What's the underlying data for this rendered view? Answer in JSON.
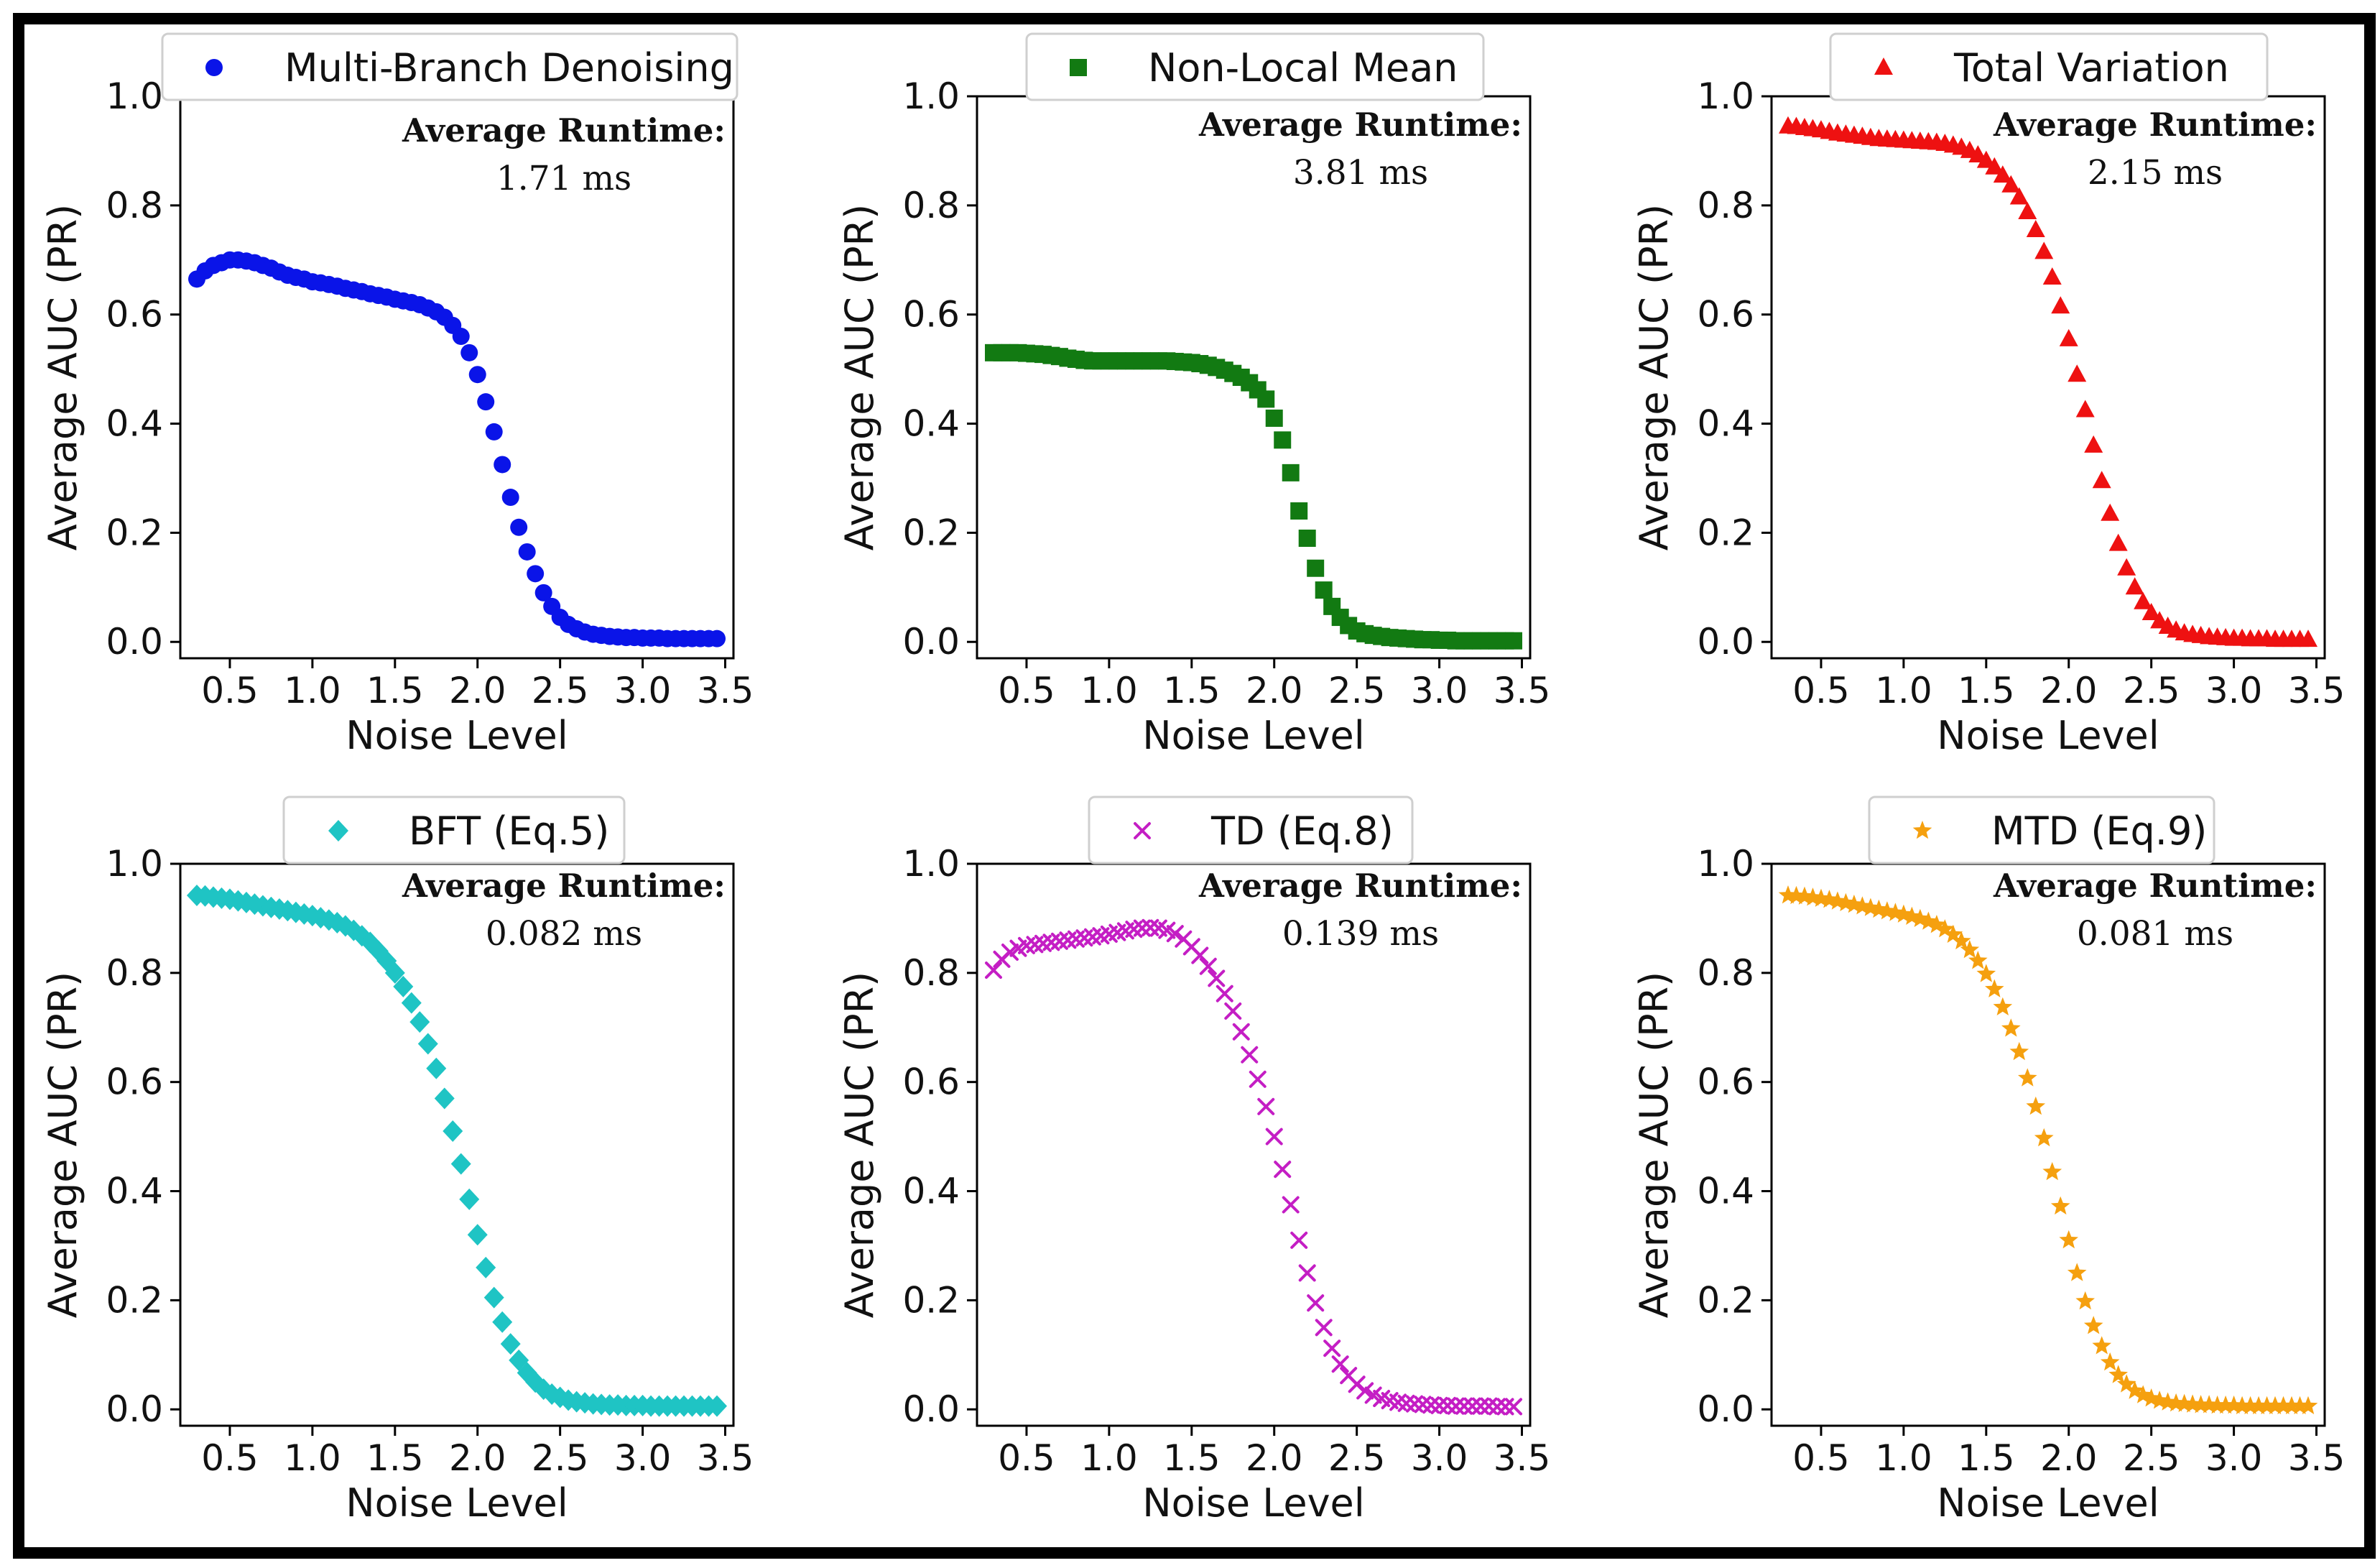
{
  "chart_data": [
    {
      "type": "scatter",
      "legend_label": "Multi-Branch Denoising",
      "marker": "circle",
      "color": "#0a14e8",
      "xlabel": "Noise Level",
      "ylabel": "Average AUC (PR)",
      "xlim": [
        0.2,
        3.55
      ],
      "ylim": [
        -0.03,
        1.0
      ],
      "xticks": [
        "0.5",
        "1.0",
        "1.5",
        "2.0",
        "2.5",
        "3.0",
        "3.5"
      ],
      "yticks": [
        "0.0",
        "0.2",
        "0.4",
        "0.6",
        "0.8",
        "1.0"
      ],
      "runtime_title": "Average Runtime:",
      "runtime_value": "1.71 ms",
      "x": [
        0.3,
        0.35,
        0.4,
        0.45,
        0.5,
        0.55,
        0.6,
        0.65,
        0.7,
        0.75,
        0.8,
        0.85,
        0.9,
        0.95,
        1.0,
        1.05,
        1.1,
        1.15,
        1.2,
        1.25,
        1.3,
        1.35,
        1.4,
        1.45,
        1.5,
        1.55,
        1.6,
        1.65,
        1.7,
        1.75,
        1.8,
        1.85,
        1.9,
        1.95,
        2.0,
        2.05,
        2.1,
        2.15,
        2.2,
        2.25,
        2.3,
        2.35,
        2.4,
        2.45,
        2.5,
        2.55,
        2.6,
        2.65,
        2.7,
        2.75,
        2.8,
        2.85,
        2.9,
        2.95,
        3.0,
        3.05,
        3.1,
        3.15,
        3.2,
        3.25,
        3.3,
        3.35,
        3.4,
        3.45
      ],
      "y": [
        0.665,
        0.68,
        0.69,
        0.695,
        0.7,
        0.7,
        0.698,
        0.695,
        0.69,
        0.685,
        0.678,
        0.672,
        0.668,
        0.665,
        0.66,
        0.658,
        0.655,
        0.652,
        0.648,
        0.645,
        0.642,
        0.638,
        0.635,
        0.632,
        0.628,
        0.625,
        0.622,
        0.618,
        0.612,
        0.605,
        0.595,
        0.58,
        0.56,
        0.53,
        0.49,
        0.44,
        0.385,
        0.325,
        0.265,
        0.21,
        0.165,
        0.125,
        0.09,
        0.065,
        0.045,
        0.032,
        0.024,
        0.018,
        0.014,
        0.012,
        0.01,
        0.009,
        0.008,
        0.008,
        0.007,
        0.007,
        0.007,
        0.006,
        0.006,
        0.006,
        0.006,
        0.006,
        0.006,
        0.006
      ]
    },
    {
      "type": "scatter",
      "legend_label": "Non-Local Mean",
      "marker": "square",
      "color": "#127a12",
      "xlabel": "Noise Level",
      "ylabel": "Average AUC (PR)",
      "xlim": [
        0.2,
        3.55
      ],
      "ylim": [
        -0.03,
        1.0
      ],
      "xticks": [
        "0.5",
        "1.0",
        "1.5",
        "2.0",
        "2.5",
        "3.0",
        "3.5"
      ],
      "yticks": [
        "0.0",
        "0.2",
        "0.4",
        "0.6",
        "0.8",
        "1.0"
      ],
      "runtime_title": "Average Runtime:",
      "runtime_value": "3.81 ms",
      "x": [
        0.3,
        0.35,
        0.4,
        0.45,
        0.5,
        0.55,
        0.6,
        0.65,
        0.7,
        0.75,
        0.8,
        0.85,
        0.9,
        0.95,
        1.0,
        1.05,
        1.1,
        1.15,
        1.2,
        1.25,
        1.3,
        1.35,
        1.4,
        1.45,
        1.5,
        1.55,
        1.6,
        1.65,
        1.7,
        1.75,
        1.8,
        1.85,
        1.9,
        1.95,
        2.0,
        2.05,
        2.1,
        2.15,
        2.2,
        2.25,
        2.3,
        2.35,
        2.4,
        2.45,
        2.5,
        2.55,
        2.6,
        2.65,
        2.7,
        2.75,
        2.8,
        2.85,
        2.9,
        2.95,
        3.0,
        3.05,
        3.1,
        3.15,
        3.2,
        3.25,
        3.3,
        3.35,
        3.4,
        3.45
      ],
      "y": [
        0.53,
        0.53,
        0.53,
        0.53,
        0.529,
        0.528,
        0.527,
        0.525,
        0.523,
        0.52,
        0.518,
        0.516,
        0.515,
        0.515,
        0.515,
        0.515,
        0.515,
        0.515,
        0.515,
        0.515,
        0.515,
        0.515,
        0.514,
        0.513,
        0.512,
        0.51,
        0.507,
        0.503,
        0.498,
        0.492,
        0.485,
        0.475,
        0.462,
        0.445,
        0.41,
        0.37,
        0.31,
        0.24,
        0.19,
        0.135,
        0.095,
        0.065,
        0.045,
        0.03,
        0.02,
        0.015,
        0.012,
        0.01,
        0.008,
        0.007,
        0.006,
        0.005,
        0.004,
        0.004,
        0.003,
        0.003,
        0.002,
        0.002,
        0.002,
        0.002,
        0.002,
        0.002,
        0.002,
        0.002
      ]
    },
    {
      "type": "scatter",
      "legend_label": "Total Variation",
      "marker": "triangle",
      "color": "#ee1111",
      "xlabel": "Noise Level",
      "ylabel": "Average AUC (PR)",
      "xlim": [
        0.2,
        3.55
      ],
      "ylim": [
        -0.03,
        1.0
      ],
      "xticks": [
        "0.5",
        "1.0",
        "1.5",
        "2.0",
        "2.5",
        "3.0",
        "3.5"
      ],
      "yticks": [
        "0.0",
        "0.2",
        "0.4",
        "0.6",
        "0.8",
        "1.0"
      ],
      "runtime_title": "Average Runtime:",
      "runtime_value": "2.15 ms",
      "x": [
        0.3,
        0.35,
        0.4,
        0.45,
        0.5,
        0.55,
        0.6,
        0.65,
        0.7,
        0.75,
        0.8,
        0.85,
        0.9,
        0.95,
        1.0,
        1.05,
        1.1,
        1.15,
        1.2,
        1.25,
        1.3,
        1.35,
        1.4,
        1.45,
        1.5,
        1.55,
        1.6,
        1.65,
        1.7,
        1.75,
        1.8,
        1.85,
        1.9,
        1.95,
        2.0,
        2.05,
        2.1,
        2.15,
        2.2,
        2.25,
        2.3,
        2.35,
        2.4,
        2.45,
        2.5,
        2.55,
        2.6,
        2.65,
        2.7,
        2.75,
        2.8,
        2.85,
        2.9,
        2.95,
        3.0,
        3.05,
        3.1,
        3.15,
        3.2,
        3.25,
        3.3,
        3.35,
        3.4,
        3.45
      ],
      "y": [
        0.945,
        0.944,
        0.942,
        0.94,
        0.938,
        0.935,
        0.932,
        0.93,
        0.928,
        0.926,
        0.924,
        0.922,
        0.921,
        0.92,
        0.919,
        0.918,
        0.917,
        0.916,
        0.915,
        0.913,
        0.91,
        0.906,
        0.9,
        0.892,
        0.882,
        0.87,
        0.855,
        0.837,
        0.815,
        0.788,
        0.755,
        0.715,
        0.668,
        0.615,
        0.555,
        0.49,
        0.425,
        0.36,
        0.295,
        0.235,
        0.18,
        0.135,
        0.1,
        0.073,
        0.053,
        0.038,
        0.028,
        0.021,
        0.016,
        0.013,
        0.011,
        0.009,
        0.008,
        0.007,
        0.006,
        0.006,
        0.005,
        0.005,
        0.005,
        0.004,
        0.004,
        0.004,
        0.004,
        0.004
      ]
    },
    {
      "type": "scatter",
      "legend_label": "BFT (Eq.5)",
      "marker": "diamond",
      "color": "#1fc4c4",
      "xlabel": "Noise Level",
      "ylabel": "Average AUC (PR)",
      "xlim": [
        0.2,
        3.55
      ],
      "ylim": [
        -0.03,
        1.0
      ],
      "xticks": [
        "0.5",
        "1.0",
        "1.5",
        "2.0",
        "2.5",
        "3.0",
        "3.5"
      ],
      "yticks": [
        "0.0",
        "0.2",
        "0.4",
        "0.6",
        "0.8",
        "1.0"
      ],
      "runtime_title": "Average Runtime:",
      "runtime_value": "0.082 ms",
      "x": [
        0.3,
        0.35,
        0.4,
        0.45,
        0.5,
        0.55,
        0.6,
        0.65,
        0.7,
        0.75,
        0.8,
        0.85,
        0.9,
        0.95,
        1.0,
        1.05,
        1.1,
        1.15,
        1.2,
        1.25,
        1.3,
        1.35,
        1.4,
        1.45,
        1.5,
        1.55,
        1.6,
        1.65,
        1.7,
        1.75,
        1.8,
        1.85,
        1.9,
        1.95,
        2.0,
        2.05,
        2.1,
        2.15,
        2.2,
        2.25,
        2.3,
        2.35,
        2.4,
        2.45,
        2.5,
        2.55,
        2.6,
        2.65,
        2.7,
        2.75,
        2.8,
        2.85,
        2.9,
        2.95,
        3.0,
        3.05,
        3.1,
        3.15,
        3.2,
        3.25,
        3.3,
        3.35,
        3.4,
        3.45
      ],
      "y": [
        0.942,
        0.941,
        0.939,
        0.937,
        0.935,
        0.932,
        0.929,
        0.926,
        0.923,
        0.92,
        0.917,
        0.914,
        0.911,
        0.908,
        0.905,
        0.901,
        0.897,
        0.892,
        0.886,
        0.878,
        0.868,
        0.856,
        0.84,
        0.822,
        0.8,
        0.775,
        0.745,
        0.71,
        0.67,
        0.625,
        0.57,
        0.51,
        0.45,
        0.385,
        0.32,
        0.26,
        0.205,
        0.16,
        0.12,
        0.09,
        0.067,
        0.05,
        0.037,
        0.028,
        0.022,
        0.017,
        0.014,
        0.012,
        0.01,
        0.009,
        0.008,
        0.008,
        0.007,
        0.007,
        0.007,
        0.006,
        0.006,
        0.006,
        0.006,
        0.006,
        0.006,
        0.006,
        0.006,
        0.006
      ]
    },
    {
      "type": "scatter",
      "legend_label": "TD (Eq.8)",
      "marker": "x",
      "color": "#c41ec4",
      "xlabel": "Noise Level",
      "ylabel": "Average AUC (PR)",
      "xlim": [
        0.2,
        3.55
      ],
      "ylim": [
        -0.03,
        1.0
      ],
      "xticks": [
        "0.5",
        "1.0",
        "1.5",
        "2.0",
        "2.5",
        "3.0",
        "3.5"
      ],
      "yticks": [
        "0.0",
        "0.2",
        "0.4",
        "0.6",
        "0.8",
        "1.0"
      ],
      "runtime_title": "Average Runtime:",
      "runtime_value": "0.139 ms",
      "x": [
        0.3,
        0.35,
        0.4,
        0.45,
        0.5,
        0.55,
        0.6,
        0.65,
        0.7,
        0.75,
        0.8,
        0.85,
        0.9,
        0.95,
        1.0,
        1.05,
        1.1,
        1.15,
        1.2,
        1.25,
        1.3,
        1.35,
        1.4,
        1.45,
        1.5,
        1.55,
        1.6,
        1.65,
        1.7,
        1.75,
        1.8,
        1.85,
        1.9,
        1.95,
        2.0,
        2.05,
        2.1,
        2.15,
        2.2,
        2.25,
        2.3,
        2.35,
        2.4,
        2.45,
        2.5,
        2.55,
        2.6,
        2.65,
        2.7,
        2.75,
        2.8,
        2.85,
        2.9,
        2.95,
        3.0,
        3.05,
        3.1,
        3.15,
        3.2,
        3.25,
        3.3,
        3.35,
        3.4,
        3.45
      ],
      "y": [
        0.805,
        0.825,
        0.838,
        0.845,
        0.85,
        0.852,
        0.854,
        0.856,
        0.858,
        0.86,
        0.862,
        0.864,
        0.866,
        0.868,
        0.871,
        0.874,
        0.877,
        0.88,
        0.882,
        0.883,
        0.882,
        0.878,
        0.872,
        0.862,
        0.848,
        0.832,
        0.812,
        0.79,
        0.762,
        0.73,
        0.692,
        0.65,
        0.605,
        0.555,
        0.5,
        0.44,
        0.375,
        0.31,
        0.25,
        0.195,
        0.15,
        0.112,
        0.083,
        0.062,
        0.046,
        0.034,
        0.026,
        0.02,
        0.016,
        0.013,
        0.011,
        0.01,
        0.009,
        0.008,
        0.007,
        0.007,
        0.006,
        0.006,
        0.006,
        0.006,
        0.006,
        0.005,
        0.005,
        0.005
      ]
    },
    {
      "type": "scatter",
      "legend_label": "MTD (Eq.9)",
      "marker": "star",
      "color": "#f5a00f",
      "xlabel": "Noise Level",
      "ylabel": "Average AUC (PR)",
      "xlim": [
        0.2,
        3.55
      ],
      "ylim": [
        -0.03,
        1.0
      ],
      "xticks": [
        "0.5",
        "1.0",
        "1.5",
        "2.0",
        "2.5",
        "3.0",
        "3.5"
      ],
      "yticks": [
        "0.0",
        "0.2",
        "0.4",
        "0.6",
        "0.8",
        "1.0"
      ],
      "runtime_title": "Average Runtime:",
      "runtime_value": "0.081 ms",
      "x": [
        0.3,
        0.35,
        0.4,
        0.45,
        0.5,
        0.55,
        0.6,
        0.65,
        0.7,
        0.75,
        0.8,
        0.85,
        0.9,
        0.95,
        1.0,
        1.05,
        1.1,
        1.15,
        1.2,
        1.25,
        1.3,
        1.35,
        1.4,
        1.45,
        1.5,
        1.55,
        1.6,
        1.65,
        1.7,
        1.75,
        1.8,
        1.85,
        1.9,
        1.95,
        2.0,
        2.05,
        2.1,
        2.15,
        2.2,
        2.25,
        2.3,
        2.35,
        2.4,
        2.45,
        2.5,
        2.55,
        2.6,
        2.65,
        2.7,
        2.75,
        2.8,
        2.85,
        2.9,
        2.95,
        3.0,
        3.05,
        3.1,
        3.15,
        3.2,
        3.25,
        3.3,
        3.35,
        3.4,
        3.45
      ],
      "y": [
        0.942,
        0.941,
        0.94,
        0.938,
        0.936,
        0.934,
        0.931,
        0.928,
        0.925,
        0.922,
        0.919,
        0.916,
        0.913,
        0.91,
        0.907,
        0.903,
        0.899,
        0.894,
        0.888,
        0.88,
        0.87,
        0.858,
        0.842,
        0.822,
        0.798,
        0.77,
        0.737,
        0.698,
        0.655,
        0.607,
        0.555,
        0.497,
        0.435,
        0.372,
        0.31,
        0.25,
        0.198,
        0.153,
        0.116,
        0.086,
        0.063,
        0.046,
        0.034,
        0.026,
        0.02,
        0.016,
        0.013,
        0.011,
        0.01,
        0.009,
        0.008,
        0.008,
        0.007,
        0.007,
        0.007,
        0.006,
        0.006,
        0.006,
        0.006,
        0.006,
        0.006,
        0.006,
        0.006,
        0.006
      ]
    }
  ]
}
